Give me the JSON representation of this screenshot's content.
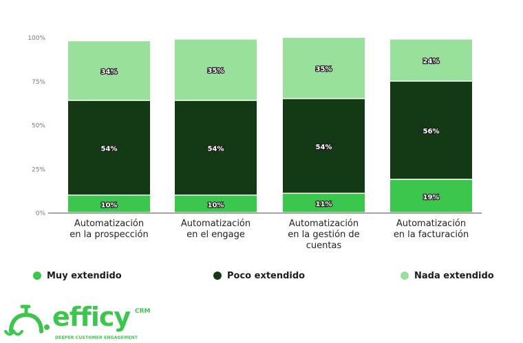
{
  "chart_data": {
    "type": "bar",
    "stacked": true,
    "categories": [
      [
        "Automatización",
        "en la prospección"
      ],
      [
        "Automatización",
        "en el engage"
      ],
      [
        "Automatización",
        "en la gestión de",
        "cuentas"
      ],
      [
        "Automatización",
        "en la facturación"
      ]
    ],
    "series": [
      {
        "name": "Muy extendido",
        "color": "#3cc64d",
        "values": [
          10,
          10,
          11,
          19
        ]
      },
      {
        "name": "Poco extendido",
        "color": "#133a14",
        "values": [
          54,
          54,
          54,
          56
        ]
      },
      {
        "name": "Nada extendido",
        "color": "#98e09b",
        "values": [
          34,
          35,
          35,
          24
        ]
      }
    ],
    "yticks": [
      "0%",
      "25%",
      "50%",
      "75%",
      "100%"
    ],
    "ylim": [
      0,
      100
    ],
    "legend_position": "bottom"
  },
  "legend": {
    "items": [
      {
        "label": "Muy extendido",
        "color": "#3cc64d"
      },
      {
        "label": "Poco extendido",
        "color": "#133a14"
      },
      {
        "label": "Nada extendido",
        "color": "#98e09b"
      }
    ]
  },
  "logo": {
    "word": "efficy",
    "suffix": "CRM",
    "tagline": "DEEPER CUSTOMER ENGAGEMENT",
    "color": "#3cc64d"
  }
}
